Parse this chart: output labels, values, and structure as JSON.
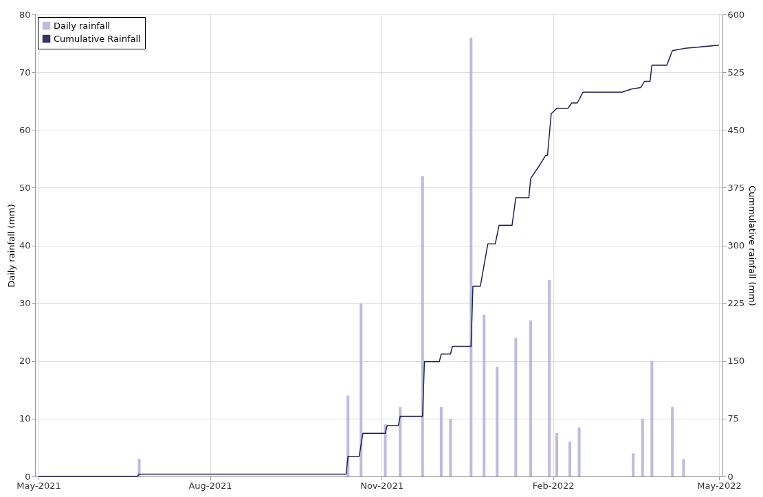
{
  "chart_data": {
    "type": "bar",
    "xlim": [
      "2021-05-01",
      "2022-05-01"
    ],
    "xticks": [
      {
        "value": "2021-05-01",
        "label": "May-2021"
      },
      {
        "value": "2021-08-01",
        "label": "Aug-2021"
      },
      {
        "value": "2021-11-01",
        "label": "Nov-2021"
      },
      {
        "value": "2022-02-01",
        "label": "Feb-2022"
      },
      {
        "value": "2022-05-01",
        "label": "May-2022"
      }
    ],
    "ylabel": "Daily rainfall (mm)",
    "y2label": "Cummulative rainfall (mm)",
    "ylim": [
      0,
      80
    ],
    "yticks": [
      0,
      10,
      20,
      30,
      40,
      50,
      60,
      70,
      80
    ],
    "y2lim": [
      0,
      600
    ],
    "y2ticks": [
      0,
      75,
      150,
      225,
      300,
      375,
      450,
      525,
      600
    ],
    "grid": true,
    "legend": "top left",
    "series": [
      {
        "name": "Daily rainfall",
        "color": "#b4b4e0",
        "x": [
          "2021-06-24",
          "2021-10-14",
          "2021-10-21",
          "2021-11-03",
          "2021-11-11",
          "2021-11-23",
          "2021-12-03",
          "2021-12-08",
          "2021-12-19",
          "2021-12-26",
          "2022-01-02",
          "2022-01-12",
          "2022-01-20",
          "2022-01-30",
          "2022-02-03",
          "2022-02-10",
          "2022-02-15",
          "2022-03-16",
          "2022-03-21",
          "2022-03-26",
          "2022-04-06",
          "2022-04-12"
        ],
        "values": [
          3,
          14,
          30,
          9,
          12,
          52,
          12,
          10,
          76,
          28,
          19,
          24,
          27,
          34,
          7.5,
          6,
          8.5,
          4,
          10,
          20,
          12,
          3
        ]
      },
      {
        "name": "Cumulative Rainfall",
        "type": "line",
        "axis": "y2",
        "color": "#202050",
        "x": [
          "2021-05-01",
          "2021-06-23",
          "2021-06-24",
          "2021-10-13",
          "2021-10-14",
          "2021-10-20",
          "2021-10-22",
          "2021-11-03",
          "2021-11-04",
          "2021-11-10",
          "2021-11-11",
          "2021-11-23",
          "2021-11-24",
          "2021-12-02",
          "2021-12-03",
          "2021-12-08",
          "2021-12-09",
          "2021-12-19",
          "2021-12-20",
          "2021-12-24",
          "2021-12-28",
          "2022-01-01",
          "2022-01-03",
          "2022-01-10",
          "2022-01-12",
          "2022-01-19",
          "2022-01-20",
          "2022-01-25",
          "2022-01-28",
          "2022-01-29",
          "2022-01-31",
          "2022-02-03",
          "2022-02-09",
          "2022-02-11",
          "2022-02-14",
          "2022-02-17",
          "2022-03-10",
          "2022-03-15",
          "2022-03-20",
          "2022-03-22",
          "2022-03-25",
          "2022-03-26",
          "2022-04-03",
          "2022-04-06",
          "2022-04-13",
          "2022-05-01"
        ],
        "values": [
          0,
          0,
          3,
          3,
          26,
          26,
          56,
          56,
          66,
          66,
          78,
          78,
          149,
          149,
          159,
          159,
          169,
          169,
          247,
          247,
          302,
          302,
          326,
          326,
          362,
          362,
          387,
          405,
          417,
          417,
          471,
          478,
          478,
          485,
          485,
          499,
          499,
          503,
          505,
          513,
          513,
          534,
          534,
          553,
          556,
          560
        ]
      }
    ]
  }
}
